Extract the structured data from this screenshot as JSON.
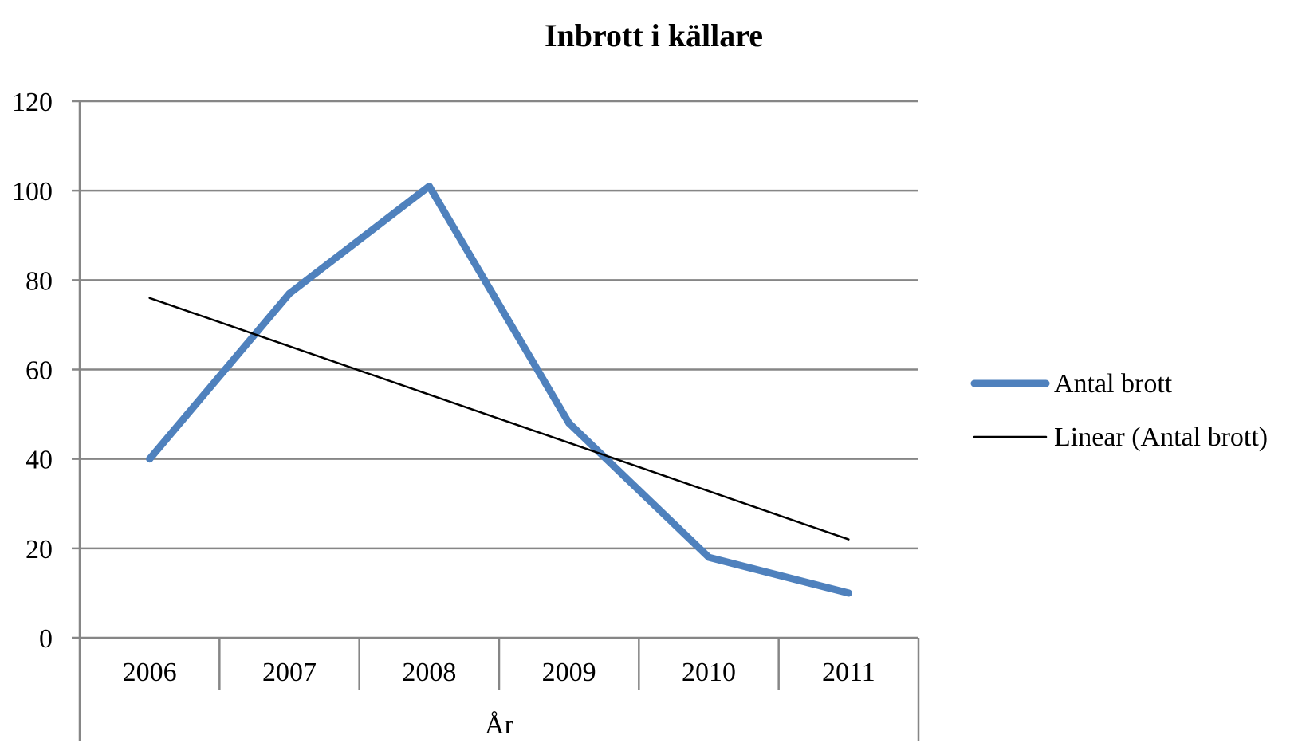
{
  "chart_data": {
    "type": "line",
    "title": "Inbrott i källare",
    "xlabel": "År",
    "ylabel": "",
    "categories": [
      "2006",
      "2007",
      "2008",
      "2009",
      "2010",
      "2011"
    ],
    "series": [
      {
        "name": "Antal brott",
        "values": [
          40,
          77,
          101,
          48,
          18,
          10
        ],
        "color": "#4F81BD"
      },
      {
        "name": "Linear (Antal brott)",
        "values": [
          76,
          65.2,
          54.4,
          43.6,
          32.8,
          22
        ],
        "color": "#000000",
        "trendline": true
      }
    ],
    "ylim": [
      0,
      120
    ],
    "yticks": [
      0,
      20,
      40,
      60,
      80,
      100,
      120
    ],
    "grid": true,
    "legend_position": "right"
  }
}
